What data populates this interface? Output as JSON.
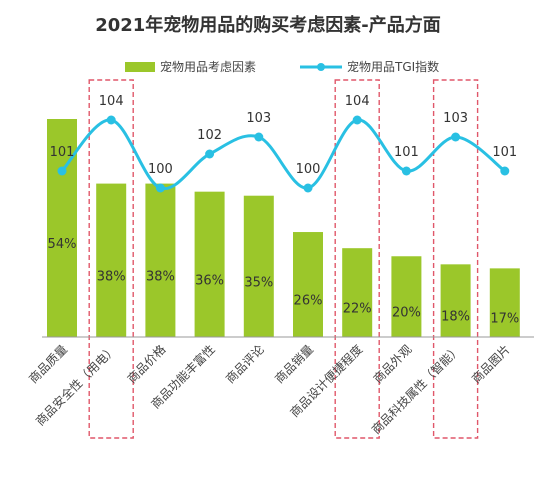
{
  "chart_data": {
    "type": "bar",
    "title": "2021年宠物用品的购买考虑因素-产品方面",
    "categories": [
      "商品质量",
      "商品安全性（用电）",
      "商品价格",
      "商品功能丰富性",
      "商品评论",
      "商品销量",
      "商品设计便捷程度",
      "商品外观",
      "商品科技属性（智能）",
      "商品图片"
    ],
    "series": [
      {
        "name": "宠物用品考虑因素",
        "type": "bar",
        "values": [
          54,
          38,
          38,
          36,
          35,
          26,
          22,
          20,
          18,
          17
        ],
        "labels": [
          "54%",
          "38%",
          "38%",
          "36%",
          "35%",
          "26%",
          "22%",
          "20%",
          "18%",
          "17%"
        ],
        "color": "#9BC72A"
      },
      {
        "name": "宠物用品TGI指数",
        "type": "line",
        "values": [
          101,
          104,
          100,
          102,
          103,
          100,
          104,
          101,
          103,
          101
        ],
        "labels": [
          "101",
          "104",
          "100",
          "102",
          "103",
          "100",
          "104",
          "101",
          "103",
          "101"
        ],
        "color": "#29C0E3"
      }
    ],
    "highlighted_categories": [
      "商品安全性（用电）",
      "商品设计便捷程度",
      "商品科技属性（智能）"
    ],
    "highlight_color": "#E0576A",
    "legend_position": "top",
    "grid": false
  }
}
